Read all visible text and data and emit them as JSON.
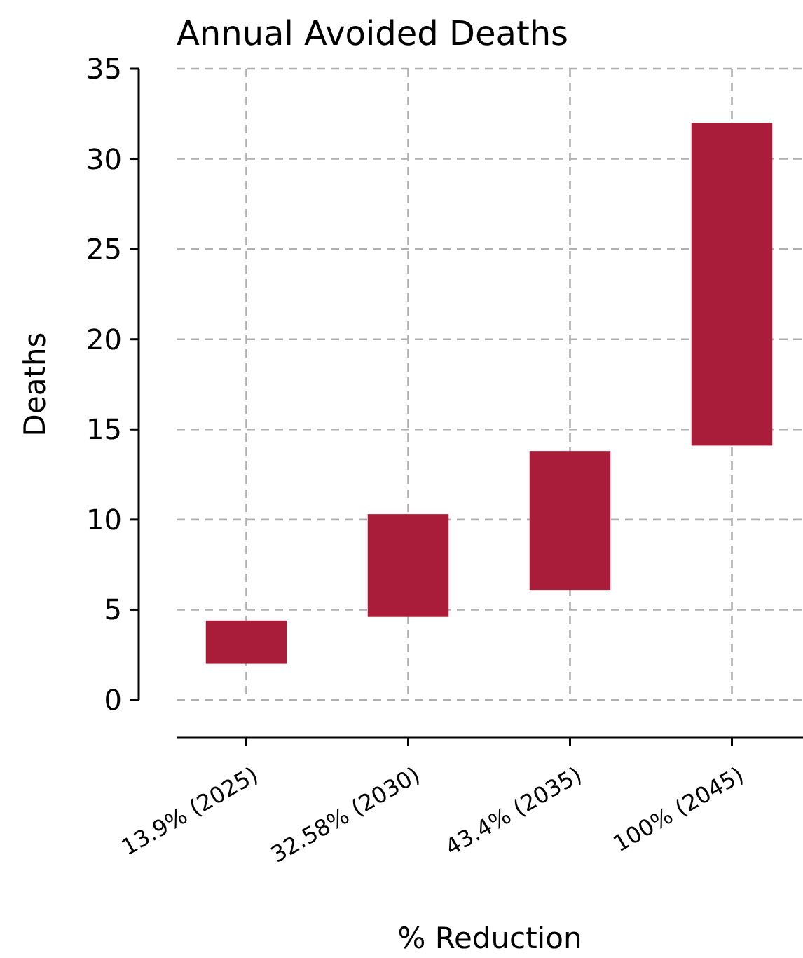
{
  "chart_data": {
    "type": "bar",
    "title": "Annual Avoided Deaths",
    "xlabel": "% Reduction",
    "ylabel": "Deaths",
    "categories": [
      "13.9% (2025)",
      "32.58% (2030)",
      "43.4% (2035)",
      "100% (2045)"
    ],
    "values": [
      2.4,
      5.7,
      7.7,
      17.9
    ],
    "base": [
      2.0,
      4.6,
      6.1,
      14.1
    ],
    "color": "#a91d3a",
    "ylim": [
      0,
      35
    ],
    "yticks": [
      0,
      5,
      10,
      15,
      20,
      25,
      30,
      35
    ],
    "grid": true
  }
}
